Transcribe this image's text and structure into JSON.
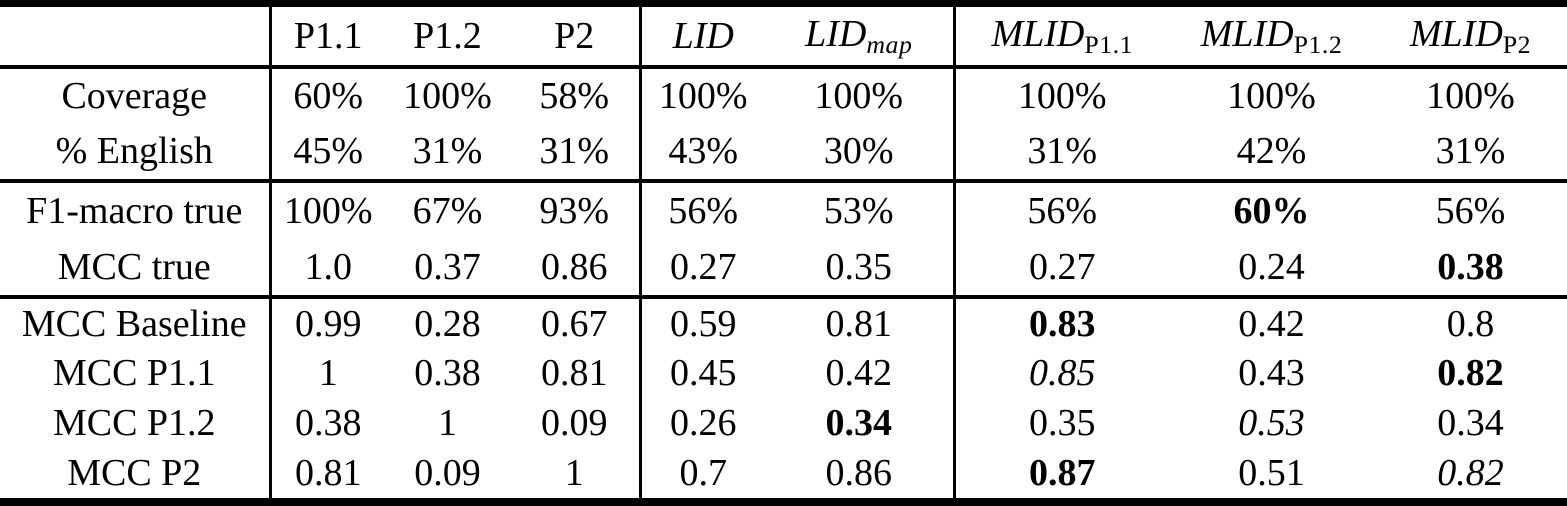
{
  "page": {
    "background_color": "#ffffff",
    "text_color": "#000000",
    "rule_color": "#000000"
  },
  "table": {
    "header": [
      {
        "text": "",
        "sub": ""
      },
      {
        "text": "P1.1",
        "sub": ""
      },
      {
        "text": "P1.2",
        "sub": ""
      },
      {
        "text": "P2",
        "sub": ""
      },
      {
        "text": "LID",
        "sub": ""
      },
      {
        "text": "LID",
        "sub": "map"
      },
      {
        "text": "MLID",
        "sub": "P1.1"
      },
      {
        "text": "MLID",
        "sub": "P1.2"
      },
      {
        "text": "MLID",
        "sub": "P2"
      }
    ],
    "sections": [
      {
        "name": "coverage-stats",
        "rows": [
          {
            "label": "Coverage",
            "cells": [
              {
                "t": "60%",
                "e": "normal"
              },
              {
                "t": "100%",
                "e": "normal"
              },
              {
                "t": "58%",
                "e": "normal"
              },
              {
                "t": "100%",
                "e": "normal"
              },
              {
                "t": "100%",
                "e": "normal"
              },
              {
                "t": "100%",
                "e": "normal"
              },
              {
                "t": "100%",
                "e": "normal"
              },
              {
                "t": "100%",
                "e": "normal"
              }
            ]
          },
          {
            "label": "% English",
            "cells": [
              {
                "t": "45%",
                "e": "normal"
              },
              {
                "t": "31%",
                "e": "normal"
              },
              {
                "t": "31%",
                "e": "normal"
              },
              {
                "t": "43%",
                "e": "normal"
              },
              {
                "t": "30%",
                "e": "normal"
              },
              {
                "t": "31%",
                "e": "normal"
              },
              {
                "t": "42%",
                "e": "normal"
              },
              {
                "t": "31%",
                "e": "normal"
              }
            ]
          }
        ]
      },
      {
        "name": "true-scores",
        "rows": [
          {
            "label": "F1-macro true",
            "cells": [
              {
                "t": "100%",
                "e": "normal"
              },
              {
                "t": "67%",
                "e": "normal"
              },
              {
                "t": "93%",
                "e": "normal"
              },
              {
                "t": "56%",
                "e": "normal"
              },
              {
                "t": "53%",
                "e": "normal"
              },
              {
                "t": "56%",
                "e": "normal"
              },
              {
                "t": "60%",
                "e": "bold"
              },
              {
                "t": "56%",
                "e": "normal"
              }
            ]
          },
          {
            "label": "MCC true",
            "cells": [
              {
                "t": "1.0",
                "e": "normal"
              },
              {
                "t": "0.37",
                "e": "normal"
              },
              {
                "t": "0.86",
                "e": "normal"
              },
              {
                "t": "0.27",
                "e": "normal"
              },
              {
                "t": "0.35",
                "e": "normal"
              },
              {
                "t": "0.27",
                "e": "normal"
              },
              {
                "t": "0.24",
                "e": "normal"
              },
              {
                "t": "0.38",
                "e": "bold"
              }
            ]
          }
        ]
      },
      {
        "name": "mcc-matrix",
        "rows": [
          {
            "label": "MCC Baseline",
            "cells": [
              {
                "t": "0.99",
                "e": "normal"
              },
              {
                "t": "0.28",
                "e": "normal"
              },
              {
                "t": "0.67",
                "e": "normal"
              },
              {
                "t": "0.59",
                "e": "normal"
              },
              {
                "t": "0.81",
                "e": "normal"
              },
              {
                "t": "0.83",
                "e": "bold"
              },
              {
                "t": "0.42",
                "e": "normal"
              },
              {
                "t": "0.8",
                "e": "normal"
              }
            ]
          },
          {
            "label": "MCC P1.1",
            "cells": [
              {
                "t": "1",
                "e": "normal"
              },
              {
                "t": "0.38",
                "e": "normal"
              },
              {
                "t": "0.81",
                "e": "normal"
              },
              {
                "t": "0.45",
                "e": "normal"
              },
              {
                "t": "0.42",
                "e": "normal"
              },
              {
                "t": "0.85",
                "e": "italic"
              },
              {
                "t": "0.43",
                "e": "normal"
              },
              {
                "t": "0.82",
                "e": "bold"
              }
            ]
          },
          {
            "label": "MCC P1.2",
            "cells": [
              {
                "t": "0.38",
                "e": "normal"
              },
              {
                "t": "1",
                "e": "normal"
              },
              {
                "t": "0.09",
                "e": "normal"
              },
              {
                "t": "0.26",
                "e": "normal"
              },
              {
                "t": "0.34",
                "e": "bold"
              },
              {
                "t": "0.35",
                "e": "normal"
              },
              {
                "t": "0.53",
                "e": "italic"
              },
              {
                "t": "0.34",
                "e": "normal"
              }
            ]
          },
          {
            "label": "MCC P2",
            "cells": [
              {
                "t": "0.81",
                "e": "normal"
              },
              {
                "t": "0.09",
                "e": "normal"
              },
              {
                "t": "1",
                "e": "normal"
              },
              {
                "t": "0.7",
                "e": "normal"
              },
              {
                "t": "0.86",
                "e": "normal"
              },
              {
                "t": "0.87",
                "e": "bold"
              },
              {
                "t": "0.51",
                "e": "normal"
              },
              {
                "t": "0.82",
                "e": "italic"
              }
            ]
          }
        ]
      }
    ]
  }
}
